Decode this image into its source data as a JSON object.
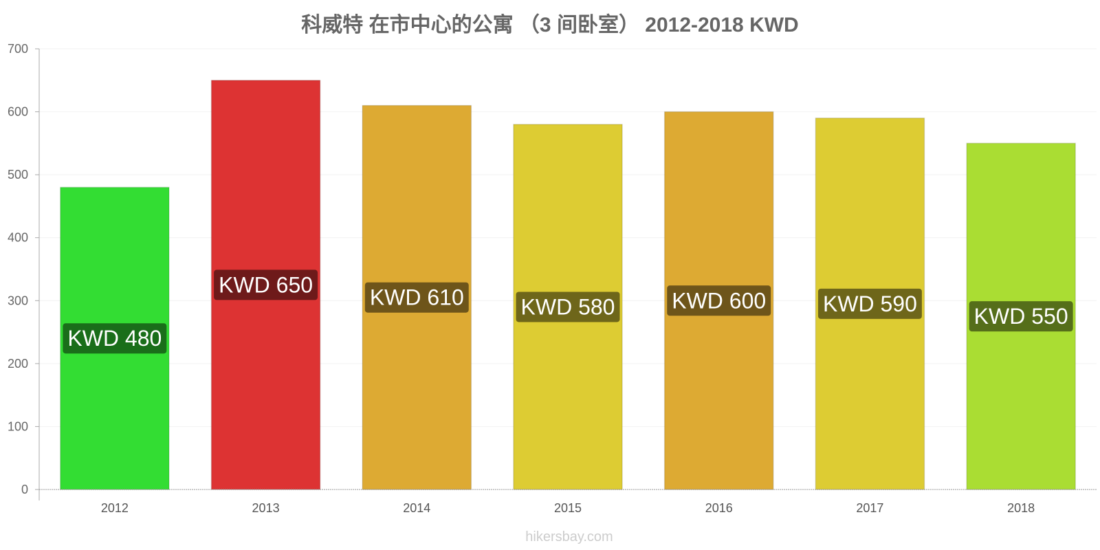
{
  "chart_data": {
    "type": "bar",
    "title": "科威特 在市中心的公寓 （3 间卧室） 2012-2018 KWD",
    "xlabel": "",
    "ylabel": "",
    "categories": [
      "2012",
      "2013",
      "2014",
      "2015",
      "2016",
      "2017",
      "2018"
    ],
    "values": [
      480,
      650,
      610,
      580,
      600,
      590,
      550
    ],
    "data_labels": [
      "KWD 480",
      "KWD 650",
      "KWD 610",
      "KWD 580",
      "KWD 600",
      "KWD 590",
      "KWD 550"
    ],
    "bar_colors": [
      "#33dd33",
      "#dd3333",
      "#ddaa33",
      "#ddcc33",
      "#ddaa33",
      "#ddcc33",
      "#aadd33"
    ],
    "label_bg_colors": [
      "#1a6e1a",
      "#6e1a1a",
      "#6e551a",
      "#6e661a",
      "#6e551a",
      "#6e661a",
      "#556e1a"
    ],
    "ylim": [
      0,
      700
    ],
    "yticks": [
      0,
      100,
      200,
      300,
      400,
      500,
      600,
      700
    ],
    "grid": true,
    "legend": "none"
  },
  "watermark": "hikersbay.com"
}
